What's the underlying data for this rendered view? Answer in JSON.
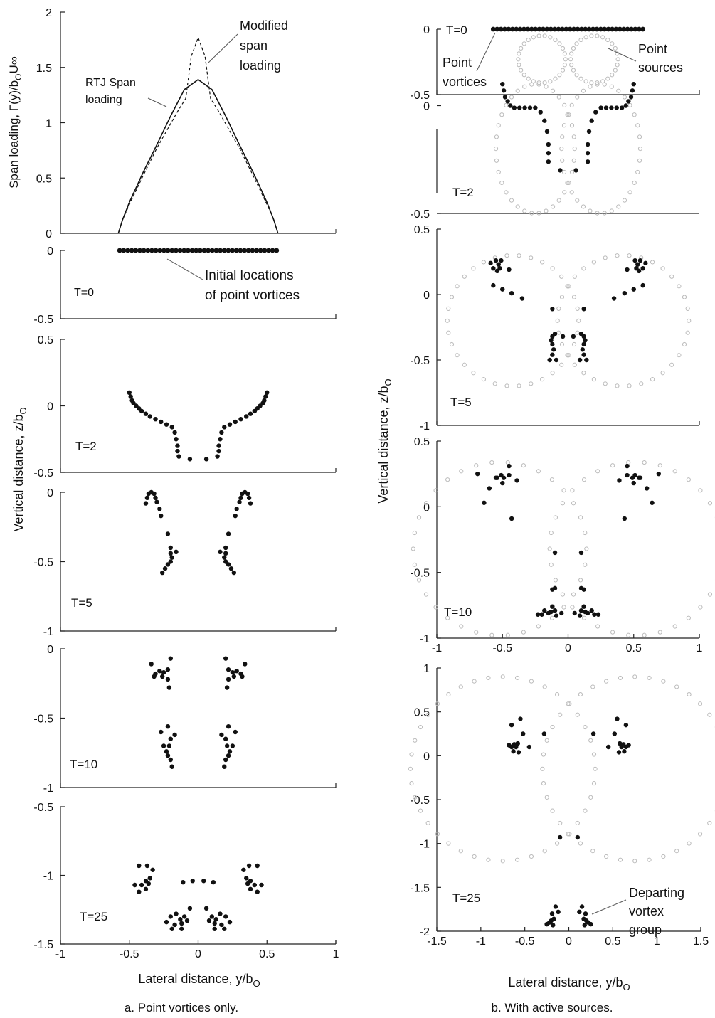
{
  "captions": {
    "left": "a. Point vortices only.",
    "right": "b. With active sources."
  },
  "common": {
    "xlabel_left": "Lateral distance, y/b",
    "xlabel_right": "Lateral distance, y/b",
    "xlabel_sub": "O",
    "ylabel_left": "Vertical distance, z/b",
    "ylabel_right": "Vertical distance, z/b",
    "ylabel_sub": "O",
    "span_ylabel": "Span loading, Γ(y)/b",
    "span_ylabel_sub": "O",
    "span_ylabel_tail": "U∞"
  },
  "chart_data": [
    {
      "id": "span",
      "type": "line",
      "xlim": [
        -1,
        1
      ],
      "ylim": [
        0,
        2
      ],
      "yticks": [
        "0",
        "0.5",
        "1",
        "1.5",
        "2"
      ],
      "series": [
        {
          "name": "RTJ Span loading",
          "x": [
            -0.58,
            -0.55,
            -0.5,
            -0.4,
            -0.3,
            -0.2,
            -0.1,
            0,
            0.1,
            0.2,
            0.3,
            0.4,
            0.5,
            0.55,
            0.58
          ],
          "y": [
            0,
            0.12,
            0.28,
            0.55,
            0.8,
            1.06,
            1.3,
            1.39,
            1.3,
            1.06,
            0.8,
            0.55,
            0.28,
            0.12,
            0
          ]
        },
        {
          "name": "Modified span loading",
          "x": [
            -0.58,
            -0.55,
            -0.5,
            -0.4,
            -0.3,
            -0.15,
            -0.09,
            -0.05,
            0,
            0.05,
            0.09,
            0.15,
            0.3,
            0.4,
            0.5,
            0.55,
            0.58
          ],
          "y": [
            0,
            0.12,
            0.26,
            0.52,
            0.77,
            1.1,
            1.22,
            1.6,
            1.77,
            1.6,
            1.22,
            1.1,
            0.77,
            0.52,
            0.26,
            0.12,
            0
          ]
        }
      ],
      "labels": [
        "RTJ Span",
        "loading",
        "Modified",
        "span",
        "loading"
      ]
    },
    {
      "id": "a0",
      "type": "scatter",
      "time": "T=0",
      "xlim": [
        -1,
        1
      ],
      "ylim": [
        -0.5,
        0
      ],
      "yticks": [
        "-0.5",
        "0"
      ],
      "vortices_line": {
        "x_from": -0.57,
        "x_to": 0.57,
        "z": 0,
        "count": 40
      },
      "labels": [
        "Initial locations",
        "of point vortices"
      ]
    },
    {
      "id": "a2",
      "type": "scatter",
      "time": "T=2",
      "xlim": [
        -1,
        1
      ],
      "ylim": [
        -0.5,
        0.5
      ],
      "yticks": [
        "-0.5",
        "0",
        "0.5"
      ],
      "half_points": [
        [
          0.5,
          0.1
        ],
        [
          0.49,
          0.07
        ],
        [
          0.48,
          0.04
        ],
        [
          0.47,
          0.02
        ],
        [
          0.45,
          0.0
        ],
        [
          0.43,
          -0.02
        ],
        [
          0.41,
          -0.04
        ],
        [
          0.38,
          -0.06
        ],
        [
          0.35,
          -0.08
        ],
        [
          0.31,
          -0.1
        ],
        [
          0.27,
          -0.12
        ],
        [
          0.23,
          -0.14
        ],
        [
          0.19,
          -0.16
        ],
        [
          0.17,
          -0.2
        ],
        [
          0.16,
          -0.25
        ],
        [
          0.15,
          -0.3
        ],
        [
          0.15,
          -0.34
        ],
        [
          0.14,
          -0.38
        ],
        [
          0.06,
          -0.4
        ]
      ]
    },
    {
      "id": "a5",
      "type": "scatter",
      "time": "T=5",
      "xlim": [
        -1,
        1
      ],
      "ylim": [
        -1,
        0
      ],
      "yticks": [
        "-1",
        "-0.5",
        "0"
      ],
      "half_points": [
        [
          0.36,
          -0.01
        ],
        [
          0.34,
          0.0
        ],
        [
          0.32,
          -0.01
        ],
        [
          0.31,
          -0.04
        ],
        [
          0.3,
          -0.07
        ],
        [
          0.37,
          -0.04
        ],
        [
          0.38,
          -0.08
        ],
        [
          0.28,
          -0.12
        ],
        [
          0.27,
          -0.17
        ],
        [
          0.22,
          -0.3
        ],
        [
          0.2,
          -0.4
        ],
        [
          0.2,
          -0.44
        ],
        [
          0.19,
          -0.47
        ],
        [
          0.2,
          -0.5
        ],
        [
          0.22,
          -0.52
        ],
        [
          0.24,
          -0.55
        ],
        [
          0.26,
          -0.58
        ],
        [
          0.16,
          -0.43
        ]
      ]
    },
    {
      "id": "a10",
      "type": "scatter",
      "time": "T=10",
      "xlim": [
        -1,
        1
      ],
      "ylim": [
        -1,
        0
      ],
      "yticks": [
        "-1",
        "-0.5",
        "0"
      ],
      "half_points": [
        [
          0.2,
          -0.07
        ],
        [
          0.22,
          -0.15
        ],
        [
          0.25,
          -0.17
        ],
        [
          0.28,
          -0.16
        ],
        [
          0.31,
          -0.18
        ],
        [
          0.32,
          -0.2
        ],
        [
          0.26,
          -0.2
        ],
        [
          0.22,
          -0.22
        ],
        [
          0.21,
          -0.28
        ],
        [
          0.17,
          -0.62
        ],
        [
          0.2,
          -0.65
        ],
        [
          0.21,
          -0.7
        ],
        [
          0.27,
          -0.6
        ],
        [
          0.25,
          -0.7
        ],
        [
          0.23,
          -0.74
        ],
        [
          0.22,
          -0.77
        ],
        [
          0.2,
          -0.8
        ],
        [
          0.19,
          -0.85
        ],
        [
          0.22,
          -0.56
        ],
        [
          0.34,
          -0.11
        ]
      ]
    },
    {
      "id": "a25",
      "type": "scatter",
      "time": "T=25",
      "xlim": [
        -1,
        1
      ],
      "ylim": [
        -1.5,
        -0.5
      ],
      "xticks": [
        "-1",
        "-0.5",
        "0",
        "0.5",
        "1"
      ],
      "yticks": [
        "-1.5",
        "-1",
        "-0.5"
      ],
      "half_points": [
        [
          0.37,
          -0.93
        ],
        [
          0.33,
          -0.96
        ],
        [
          0.35,
          -1.02
        ],
        [
          0.38,
          -1.04
        ],
        [
          0.36,
          -1.06
        ],
        [
          0.38,
          -1.1
        ],
        [
          0.41,
          -1.07
        ],
        [
          0.43,
          -1.12
        ],
        [
          0.46,
          -1.07
        ],
        [
          0.43,
          -0.93
        ],
        [
          0.04,
          -1.04
        ],
        [
          0.11,
          -1.05
        ],
        [
          0.06,
          -1.24
        ],
        [
          0.1,
          -1.3
        ],
        [
          0.13,
          -1.32
        ],
        [
          0.16,
          -1.28
        ],
        [
          0.2,
          -1.3
        ],
        [
          0.12,
          -1.35
        ],
        [
          0.17,
          -1.36
        ],
        [
          0.23,
          -1.34
        ],
        [
          0.19,
          -1.39
        ],
        [
          0.12,
          -1.39
        ],
        [
          0.08,
          -1.33
        ]
      ]
    },
    {
      "id": "b0",
      "type": "scatter",
      "time": "T=0",
      "xlim": [
        -1,
        1
      ],
      "ylim": [
        -0.5,
        0
      ],
      "yticks": [
        "-0.5",
        "0"
      ],
      "vortices_line": {
        "x_from": -0.57,
        "x_to": 0.57,
        "z": 0,
        "count": 40
      },
      "source_rings": [
        {
          "cx": -0.2,
          "cz": -0.23,
          "r": 0.18
        },
        {
          "cx": 0.2,
          "cz": -0.23,
          "r": 0.18
        }
      ],
      "labels": [
        "Point",
        "vortices",
        "Point",
        "sources"
      ]
    },
    {
      "id": "b2",
      "type": "scatter",
      "time": "T=2",
      "xlim": [
        -1,
        1
      ],
      "ylim": [
        -0.5,
        0.5
      ],
      "yticks": [
        "-0.5",
        "0"
      ],
      "half_points": [
        [
          0.5,
          0.1
        ],
        [
          0.49,
          0.07
        ],
        [
          0.48,
          0.04
        ],
        [
          0.46,
          0.02
        ],
        [
          0.44,
          0.0
        ],
        [
          0.41,
          -0.01
        ],
        [
          0.37,
          -0.01
        ],
        [
          0.33,
          -0.01
        ],
        [
          0.29,
          -0.01
        ],
        [
          0.25,
          -0.01
        ],
        [
          0.21,
          -0.03
        ],
        [
          0.18,
          -0.07
        ],
        [
          0.16,
          -0.12
        ],
        [
          0.15,
          -0.18
        ],
        [
          0.15,
          -0.22
        ],
        [
          0.15,
          -0.26
        ],
        [
          0.06,
          -0.3
        ]
      ],
      "source_rings": [
        {
          "cx": -0.25,
          "cz": -0.2,
          "r": 0.3
        },
        {
          "cx": 0.25,
          "cz": -0.2,
          "r": 0.3
        }
      ]
    },
    {
      "id": "b5",
      "type": "scatter",
      "time": "T=5",
      "xlim": [
        -1,
        1
      ],
      "ylim": [
        -1,
        0.5
      ],
      "yticks": [
        "-1",
        "-0.5",
        "0",
        "0.5"
      ],
      "half_points": [
        [
          0.51,
          0.26
        ],
        [
          0.55,
          0.26
        ],
        [
          0.53,
          0.23
        ],
        [
          0.52,
          0.2
        ],
        [
          0.54,
          0.18
        ],
        [
          0.57,
          0.2
        ],
        [
          0.59,
          0.24
        ],
        [
          0.45,
          0.19
        ],
        [
          0.57,
          0.07
        ],
        [
          0.5,
          0.04
        ],
        [
          0.43,
          0.01
        ],
        [
          0.35,
          -0.03
        ],
        [
          0.12,
          -0.11
        ],
        [
          0.1,
          -0.3
        ],
        [
          0.12,
          -0.32
        ],
        [
          0.13,
          -0.35
        ],
        [
          0.12,
          -0.38
        ],
        [
          0.11,
          -0.42
        ],
        [
          0.12,
          -0.46
        ],
        [
          0.14,
          -0.5
        ],
        [
          0.09,
          -0.5
        ],
        [
          0.04,
          -0.32
        ]
      ],
      "source_rings": [
        {
          "cx": -0.42,
          "cz": -0.2,
          "r": 0.5
        },
        {
          "cx": 0.42,
          "cz": -0.2,
          "r": 0.5
        }
      ]
    },
    {
      "id": "b10",
      "type": "scatter",
      "time": "T=10",
      "xlim": [
        -1,
        1
      ],
      "ylim": [
        -1,
        0.5
      ],
      "xticks": [
        "-1",
        "-0.5",
        "0",
        "0.5",
        "1"
      ],
      "yticks": [
        "-1",
        "-0.5",
        "0",
        "0.5"
      ],
      "half_points": [
        [
          0.45,
          0.24
        ],
        [
          0.49,
          0.22
        ],
        [
          0.51,
          0.24
        ],
        [
          0.54,
          0.22
        ],
        [
          0.55,
          0.22
        ],
        [
          0.5,
          0.18
        ],
        [
          0.6,
          0.14
        ],
        [
          0.45,
          0.31
        ],
        [
          0.39,
          0.2
        ],
        [
          0.69,
          0.25
        ],
        [
          0.64,
          0.03
        ],
        [
          0.43,
          -0.09
        ],
        [
          0.1,
          -0.35
        ],
        [
          0.1,
          -0.62
        ],
        [
          0.12,
          -0.63
        ],
        [
          0.12,
          -0.76
        ],
        [
          0.1,
          -0.79
        ],
        [
          0.13,
          -0.8
        ],
        [
          0.15,
          -0.81
        ],
        [
          0.18,
          -0.79
        ],
        [
          0.2,
          -0.82
        ],
        [
          0.23,
          -0.82
        ],
        [
          0.09,
          -0.83
        ],
        [
          0.05,
          -0.81
        ]
      ],
      "source_rings": [
        {
          "cx": -0.52,
          "cz": -0.32,
          "r": 0.66
        },
        {
          "cx": 0.52,
          "cz": -0.32,
          "r": 0.66
        }
      ]
    },
    {
      "id": "b25",
      "type": "scatter",
      "time": "T=25",
      "xlim": [
        -1.5,
        1.5
      ],
      "ylim": [
        -2,
        1
      ],
      "xticks": [
        "-1.5",
        "-1",
        "-0.5",
        "0",
        "0.5",
        "1",
        "1.5"
      ],
      "yticks": [
        "-2",
        "-1.5",
        "-1",
        "-0.5",
        "0",
        "0.5",
        "1"
      ],
      "half_points": [
        [
          0.55,
          0.42
        ],
        [
          0.65,
          0.35
        ],
        [
          0.52,
          0.25
        ],
        [
          0.58,
          0.14
        ],
        [
          0.6,
          0.1
        ],
        [
          0.62,
          0.13
        ],
        [
          0.65,
          0.1
        ],
        [
          0.68,
          0.12
        ],
        [
          0.63,
          0.05
        ],
        [
          0.57,
          0.04
        ],
        [
          0.45,
          0.1
        ],
        [
          0.28,
          0.25
        ],
        [
          0.1,
          -0.93
        ],
        [
          0.15,
          -1.72
        ],
        [
          0.19,
          -1.8
        ],
        [
          0.17,
          -1.86
        ],
        [
          0.2,
          -1.88
        ],
        [
          0.22,
          -1.9
        ],
        [
          0.25,
          -1.92
        ],
        [
          0.18,
          -1.93
        ],
        [
          0.12,
          -1.78
        ]
      ],
      "source_rings": [
        {
          "cx": -0.75,
          "cz": -0.15,
          "r": 1.05
        },
        {
          "cx": 0.75,
          "cz": -0.15,
          "r": 1.05
        }
      ],
      "labels": [
        "Departing",
        "vortex",
        "group"
      ]
    }
  ]
}
